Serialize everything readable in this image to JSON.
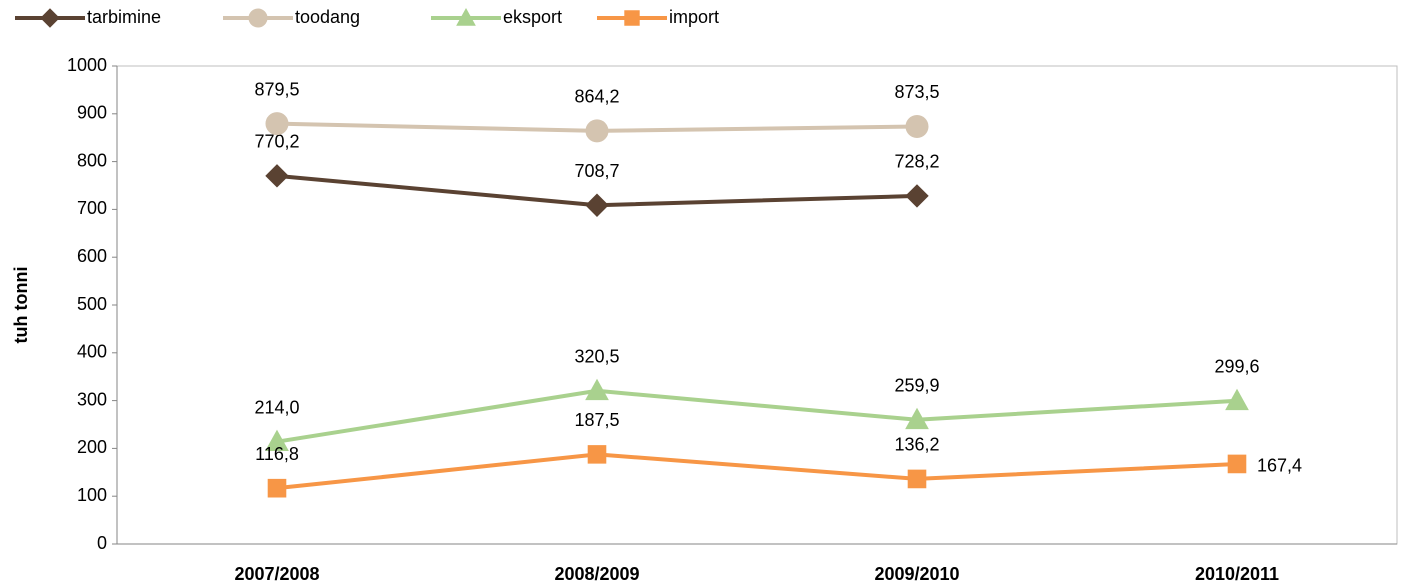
{
  "chart_data": {
    "type": "line",
    "y_label": "tuh tonni",
    "categories": [
      "2007/2008",
      "2008/2009",
      "2009/2010",
      "2010/2011"
    ],
    "series": [
      {
        "name": "tarbimine",
        "color": "#5a4232",
        "marker": "diamond",
        "values": [
          770.2,
          708.7,
          728.2,
          null
        ],
        "value_labels": [
          "770,2",
          "708,7",
          "728,2",
          null
        ]
      },
      {
        "name": "toodang",
        "color": "#d4c4b0",
        "marker": "circle",
        "values": [
          879.5,
          864.2,
          873.5,
          null
        ],
        "value_labels": [
          "879,5",
          "864,2",
          "873,5",
          null
        ]
      },
      {
        "name": "eksport",
        "color": "#a9d18e",
        "marker": "triangle",
        "values": [
          214.0,
          320.5,
          259.9,
          299.6
        ],
        "value_labels": [
          "214,0",
          "320,5",
          "259,9",
          "299,6"
        ]
      },
      {
        "name": "import",
        "color": "#f79646",
        "marker": "square",
        "values": [
          116.8,
          187.5,
          136.2,
          167.4
        ],
        "value_labels": [
          "116,8",
          "187,5",
          "136,2",
          "167,4"
        ]
      }
    ],
    "ylim": [
      0,
      1000
    ],
    "yticks": [
      0,
      100,
      200,
      300,
      400,
      500,
      600,
      700,
      800,
      900,
      1000
    ],
    "grid": false,
    "legend": "top-left"
  }
}
